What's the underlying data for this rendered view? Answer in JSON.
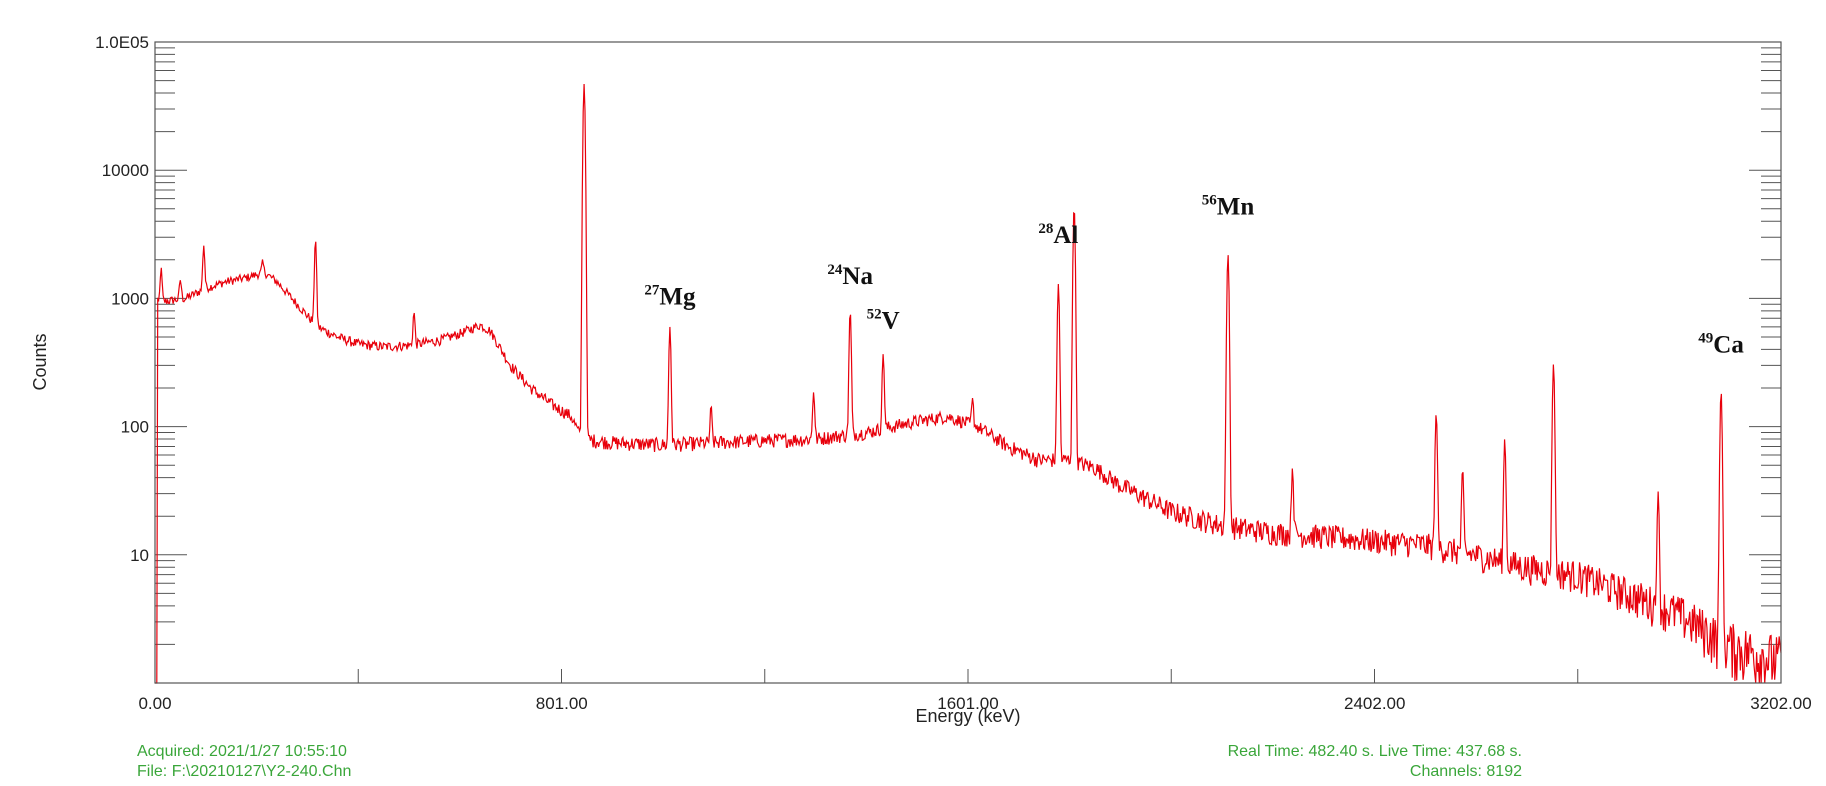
{
  "chart_data": {
    "type": "line",
    "xlabel": "Energy (keV)",
    "ylabel": "Counts",
    "y_scale": "log",
    "xlim": [
      0,
      3202
    ],
    "ylim": [
      1,
      100000
    ],
    "x_tick_labels": [
      {
        "value": 0,
        "label": "0.00"
      },
      {
        "value": 801,
        "label": "801.00"
      },
      {
        "value": 1601,
        "label": "1601.00"
      },
      {
        "value": 2402,
        "label": "2402.00"
      },
      {
        "value": 3202,
        "label": "3202.00"
      }
    ],
    "y_tick_labels": [
      {
        "value": 100000,
        "label": "1.0E05"
      },
      {
        "value": 10000,
        "label": "10000"
      },
      {
        "value": 1000,
        "label": "1000"
      },
      {
        "value": 100,
        "label": "100"
      },
      {
        "value": 10,
        "label": "10"
      }
    ],
    "line_color": "#e8000b",
    "series": [
      {
        "continuum": [
          [
            0,
            900
          ],
          [
            20,
            950
          ],
          [
            60,
            1000
          ],
          [
            100,
            1200
          ],
          [
            140,
            1350
          ],
          [
            180,
            1450
          ],
          [
            215,
            1600
          ],
          [
            240,
            1350
          ],
          [
            280,
            900
          ],
          [
            320,
            600
          ],
          [
            360,
            500
          ],
          [
            400,
            440
          ],
          [
            450,
            420
          ],
          [
            500,
            430
          ],
          [
            560,
            470
          ],
          [
            600,
            530
          ],
          [
            640,
            620
          ],
          [
            660,
            560
          ],
          [
            700,
            300
          ],
          [
            740,
            200
          ],
          [
            780,
            150
          ],
          [
            820,
            120
          ],
          [
            840,
            80
          ],
          [
            900,
            75
          ],
          [
            1000,
            72
          ],
          [
            1100,
            75
          ],
          [
            1200,
            78
          ],
          [
            1300,
            80
          ],
          [
            1400,
            90
          ],
          [
            1500,
            110
          ],
          [
            1560,
            120
          ],
          [
            1620,
            100
          ],
          [
            1680,
            70
          ],
          [
            1740,
            55
          ],
          [
            1800,
            55
          ],
          [
            1850,
            48
          ],
          [
            1900,
            35
          ],
          [
            2000,
            22
          ],
          [
            2100,
            17
          ],
          [
            2200,
            15
          ],
          [
            2300,
            14
          ],
          [
            2400,
            13
          ],
          [
            2500,
            12
          ],
          [
            2600,
            10
          ],
          [
            2700,
            8
          ],
          [
            2800,
            7
          ],
          [
            2900,
            5
          ],
          [
            3000,
            3.5
          ],
          [
            3100,
            2
          ],
          [
            3202,
            1.5
          ]
        ],
        "peaks": [
          {
            "energy": 12,
            "counts": 1700
          },
          {
            "energy": 50,
            "counts": 1400
          },
          {
            "energy": 96,
            "counts": 2600
          },
          {
            "energy": 212,
            "counts": 1900
          },
          {
            "energy": 316,
            "counts": 2900
          },
          {
            "energy": 510,
            "counts": 780
          },
          {
            "energy": 845,
            "counts": 47000
          },
          {
            "energy": 1014,
            "counts": 600
          },
          {
            "energy": 1095,
            "counts": 140
          },
          {
            "energy": 1297,
            "counts": 190
          },
          {
            "energy": 1369,
            "counts": 800
          },
          {
            "energy": 1434,
            "counts": 370
          },
          {
            "energy": 1610,
            "counts": 160
          },
          {
            "energy": 1779,
            "counts": 1300
          },
          {
            "energy": 1810,
            "counts": 5200
          },
          {
            "energy": 2110,
            "counts": 48
          },
          {
            "energy": 2113,
            "counts": 2200
          },
          {
            "energy": 2240,
            "counts": 48
          },
          {
            "energy": 2523,
            "counts": 130
          },
          {
            "energy": 2575,
            "counts": 45
          },
          {
            "energy": 2658,
            "counts": 80
          },
          {
            "energy": 2754,
            "counts": 310
          },
          {
            "energy": 2960,
            "counts": 30
          },
          {
            "energy": 3084,
            "counts": 190
          }
        ]
      }
    ],
    "annotations": [
      {
        "mass": "27",
        "element": "Mg",
        "energy": 1014,
        "counts": 900
      },
      {
        "mass": "24",
        "element": "Na",
        "energy": 1369,
        "counts": 1300
      },
      {
        "mass": "52",
        "element": "V",
        "energy": 1434,
        "counts": 580
      },
      {
        "mass": "28",
        "element": "Al",
        "energy": 1779,
        "counts": 2700
      },
      {
        "mass": "56",
        "element": "Mn",
        "energy": 2113,
        "counts": 4500
      },
      {
        "mass": "49",
        "element": "Ca",
        "energy": 3084,
        "counts": 380
      }
    ]
  },
  "footer": {
    "acquired_label": "Acquired:",
    "acquired_value": "2021/1/27 10:55:10",
    "file_label": "File:",
    "file_value": "F:\\20210127\\Y2-240.Chn",
    "real_time_label": "Real Time:",
    "real_time_value": "482.40 s.",
    "live_time_label": "Live Time:",
    "live_time_value": "437.68 s.",
    "channels_label": "Channels:",
    "channels_value": "8192"
  }
}
